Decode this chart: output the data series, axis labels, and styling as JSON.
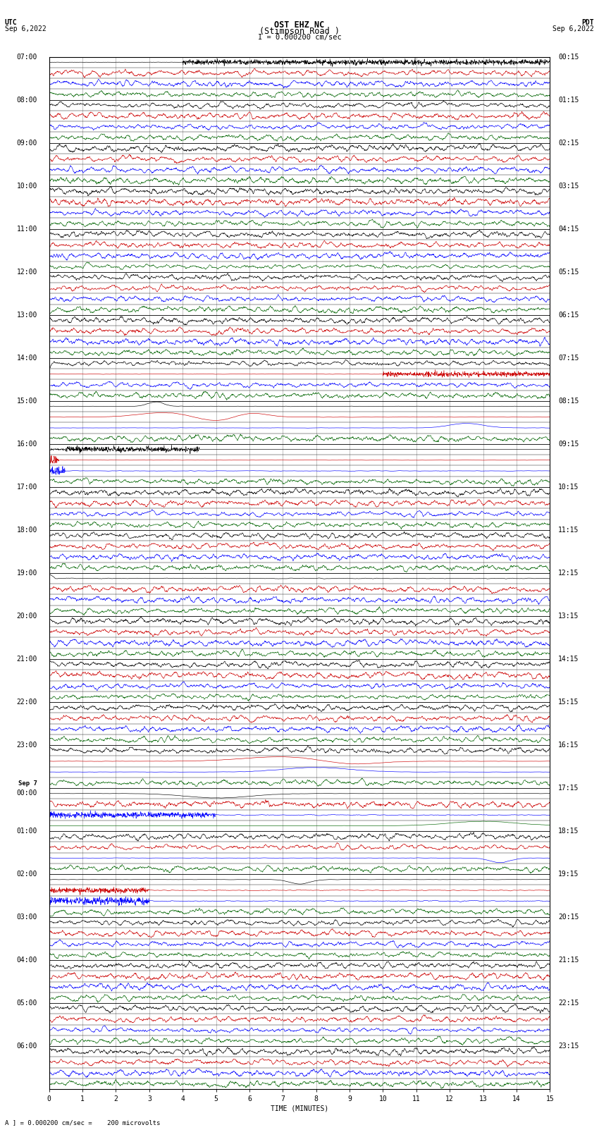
{
  "title_line1": "OST EHZ NC",
  "title_line2": "(Stimpson Road )",
  "title_line3": "I = 0.000200 cm/sec",
  "utc_label": "UTC",
  "utc_date": "Sep 6,2022",
  "pdt_label": "PDT",
  "pdt_date": "Sep 6,2022",
  "footer_label": "A ] = 0.000200 cm/sec =    200 microvolts",
  "xlabel": "TIME (MINUTES)",
  "left_times_utc": [
    "07:00",
    "",
    "",
    "",
    "08:00",
    "",
    "",
    "",
    "09:00",
    "",
    "",
    "",
    "10:00",
    "",
    "",
    "",
    "11:00",
    "",
    "",
    "",
    "12:00",
    "",
    "",
    "",
    "13:00",
    "",
    "",
    "",
    "14:00",
    "",
    "",
    "",
    "15:00",
    "",
    "",
    "",
    "16:00",
    "",
    "",
    "",
    "17:00",
    "",
    "",
    "",
    "18:00",
    "",
    "",
    "",
    "19:00",
    "",
    "",
    "",
    "20:00",
    "",
    "",
    "",
    "21:00",
    "",
    "",
    "",
    "22:00",
    "",
    "",
    "",
    "23:00",
    "",
    "",
    "",
    "Sep 7\n00:00",
    "",
    "",
    "",
    "01:00",
    "",
    "",
    "",
    "02:00",
    "",
    "",
    "",
    "03:00",
    "",
    "",
    "",
    "04:00",
    "",
    "",
    "",
    "05:00",
    "",
    "",
    "",
    "06:00",
    "",
    "",
    ""
  ],
  "right_times_pdt": [
    "00:15",
    "",
    "",
    "",
    "01:15",
    "",
    "",
    "",
    "02:15",
    "",
    "",
    "",
    "03:15",
    "",
    "",
    "",
    "04:15",
    "",
    "",
    "",
    "05:15",
    "",
    "",
    "",
    "06:15",
    "",
    "",
    "",
    "07:15",
    "",
    "",
    "",
    "08:15",
    "",
    "",
    "",
    "09:15",
    "",
    "",
    "",
    "10:15",
    "",
    "",
    "",
    "11:15",
    "",
    "",
    "",
    "12:15",
    "",
    "",
    "",
    "13:15",
    "",
    "",
    "",
    "14:15",
    "",
    "",
    "",
    "15:15",
    "",
    "",
    "",
    "16:15",
    "",
    "",
    "",
    "17:15",
    "",
    "",
    "",
    "18:15",
    "",
    "",
    "",
    "19:15",
    "",
    "",
    "",
    "20:15",
    "",
    "",
    "",
    "21:15",
    "",
    "",
    "",
    "22:15",
    "",
    "",
    "",
    "23:15",
    "",
    "",
    ""
  ],
  "n_rows": 96,
  "time_range_minutes": 15,
  "background_color": "#ffffff",
  "line_colors": [
    "black",
    "#cc0000",
    "blue",
    "darkgreen"
  ],
  "grid_color": "#aaaaaa",
  "title_fontsize": 8.5,
  "label_fontsize": 7,
  "tick_fontsize": 7
}
